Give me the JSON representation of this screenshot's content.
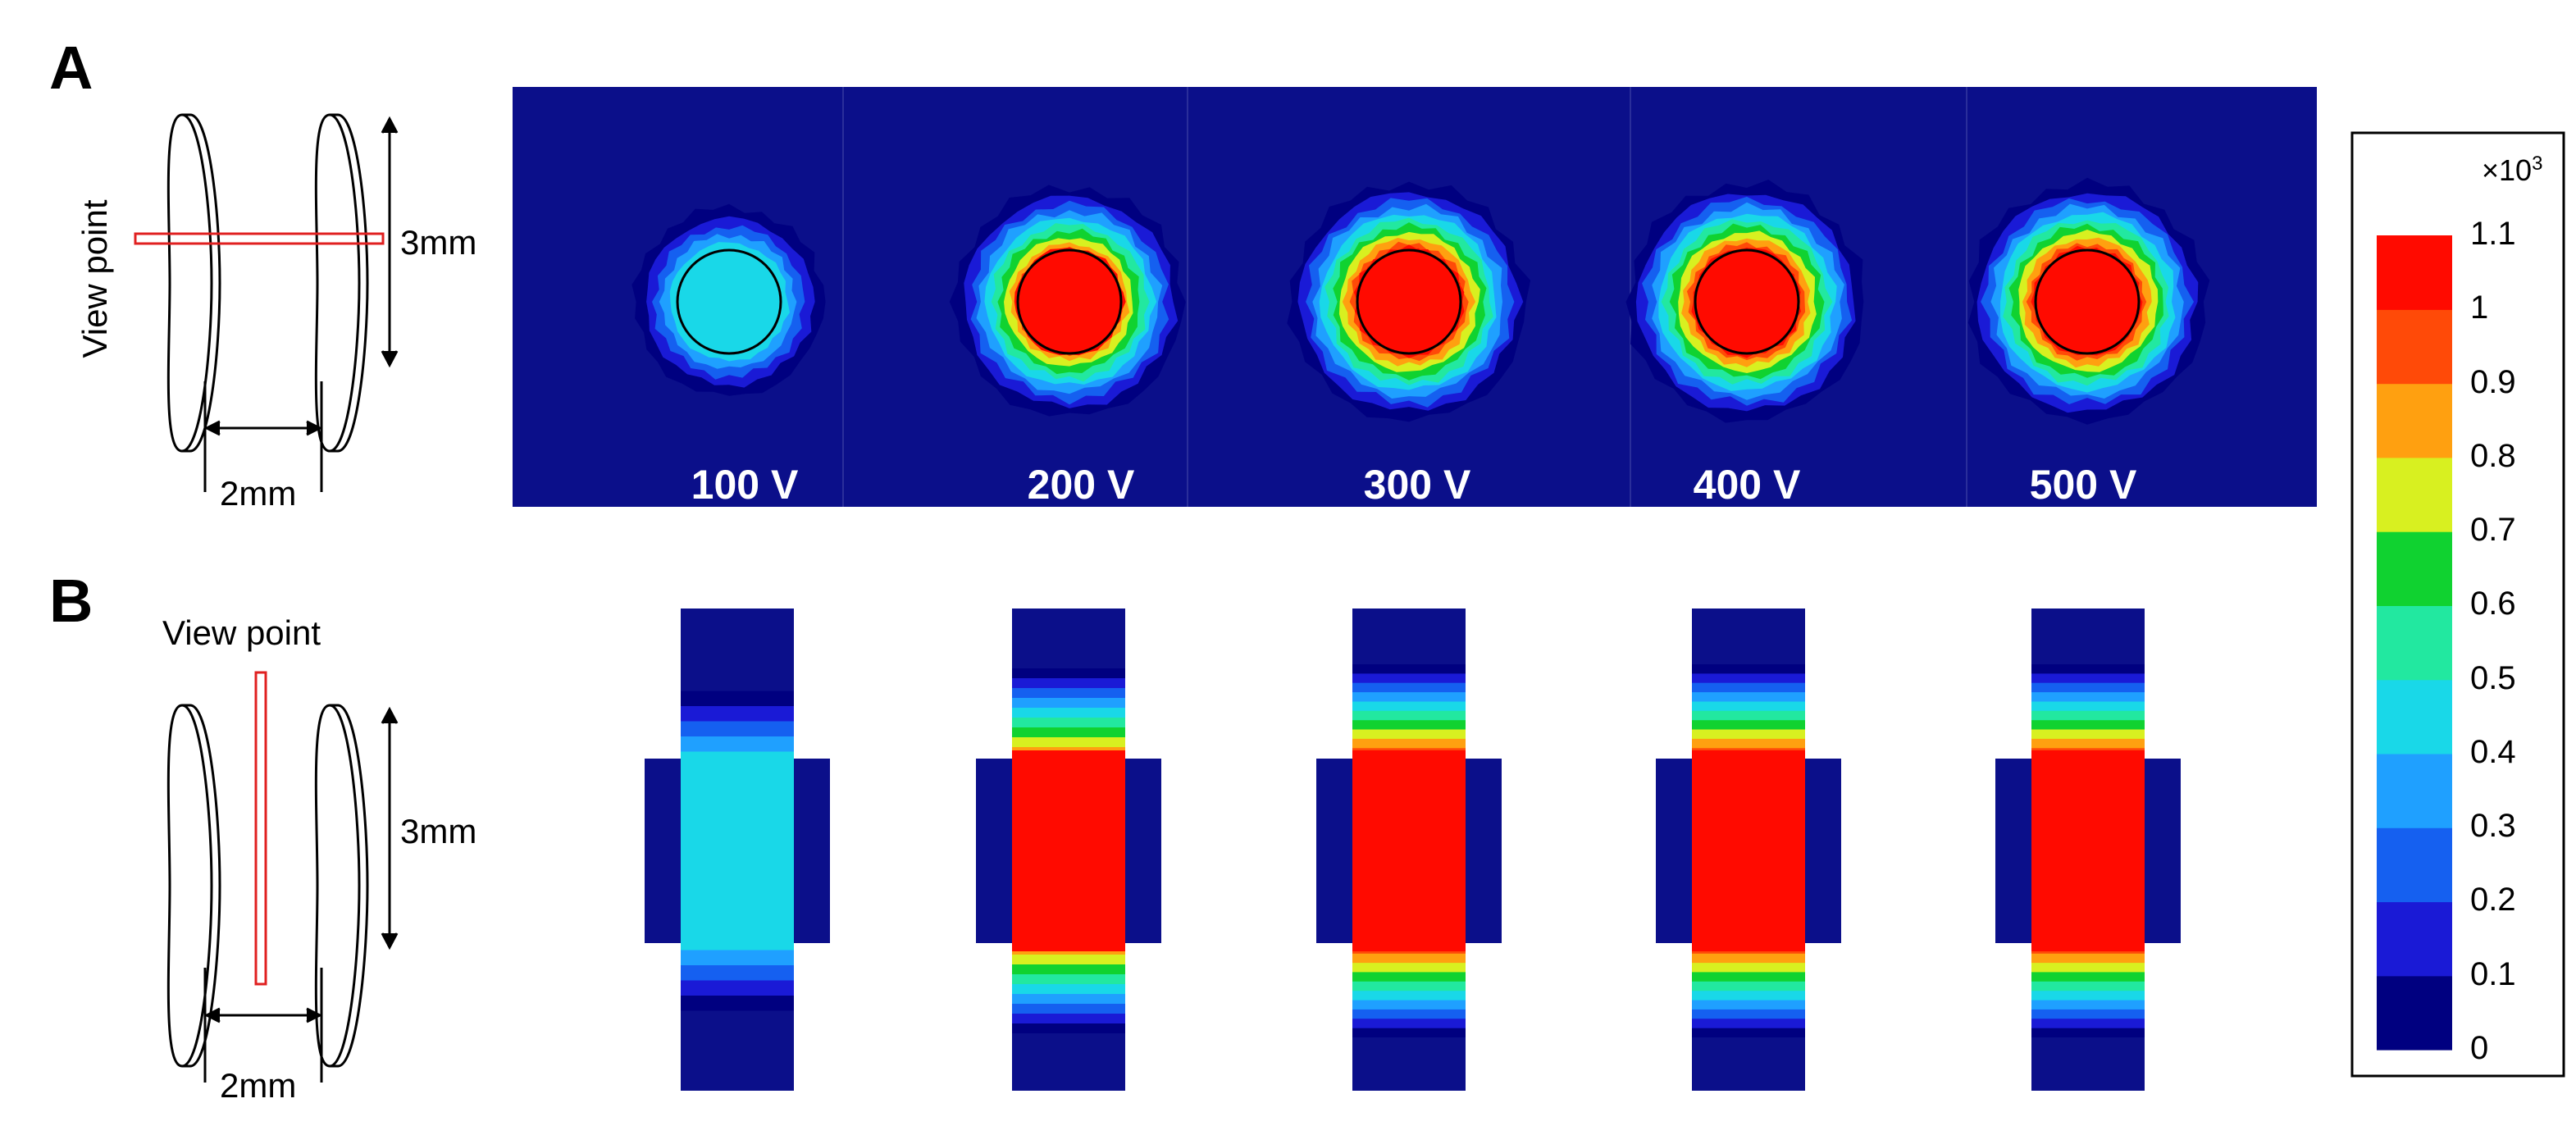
{
  "panels": {
    "A": {
      "letter": "A",
      "schematic": {
        "view_label": "View point",
        "height_label": "3mm",
        "gap_label": "2mm"
      },
      "voltages": [
        "100 V",
        "200 V",
        "300 V",
        "400 V",
        "500 V"
      ]
    },
    "B": {
      "letter": "B",
      "schematic": {
        "view_label": "View point",
        "height_label": "3mm",
        "gap_label": "2mm"
      }
    }
  },
  "colorbar": {
    "multiplier_base": "×10",
    "multiplier_exp": "3",
    "ticks": [
      "1.1",
      "1",
      "0.9",
      "0.8",
      "0.7",
      "0.6",
      "0.5",
      "0.4",
      "0.3",
      "0.2",
      "0.1",
      "0"
    ],
    "colors": [
      "#000080",
      "#1a1ad6",
      "#1560f0",
      "#1fa0ff",
      "#19d8e8",
      "#22e8a0",
      "#10d230",
      "#d8f020",
      "#ffa010",
      "#ff4a08",
      "#ff0a00"
    ]
  },
  "levels": {
    "100 V": 0.45,
    "200 V": 1.0,
    "300 V": 1.1,
    "400 V": 1.1,
    "500 V": 1.1
  },
  "colors": {
    "field_background": "#0b0f8a",
    "outline_red": "#e02020"
  }
}
